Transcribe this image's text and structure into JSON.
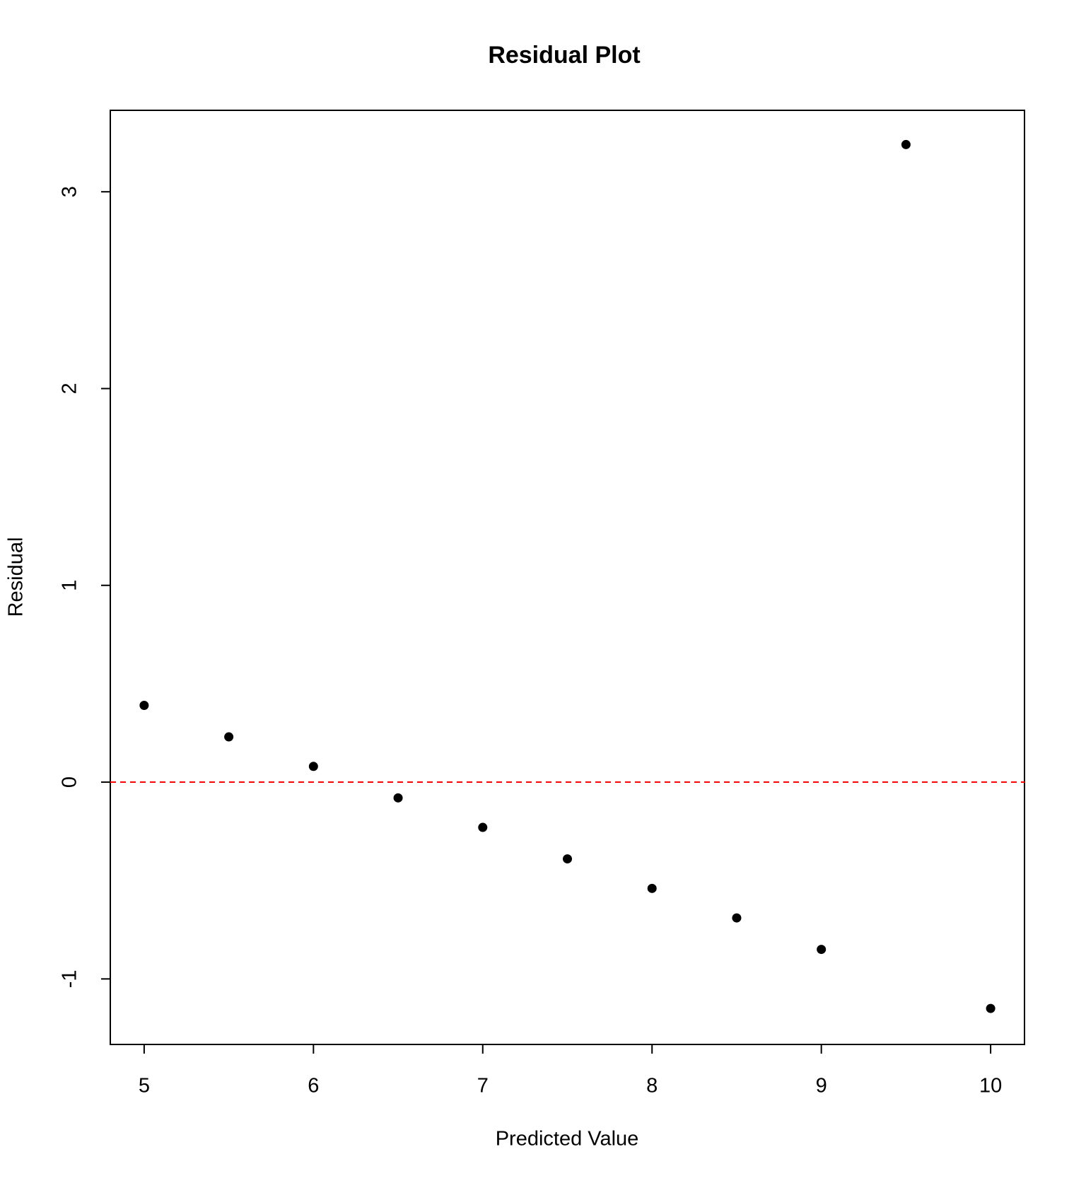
{
  "chart_data": {
    "type": "scatter",
    "title": "Residual Plot",
    "x_label": "Predicted Value",
    "y_label": "Residual",
    "x": [
      5,
      5.5,
      6,
      6.5,
      7,
      7.5,
      8,
      8.5,
      9,
      9.5,
      10
    ],
    "values": [
      0.39,
      0.23,
      0.08,
      -0.08,
      -0.23,
      -0.39,
      -0.54,
      -0.69,
      -0.85,
      3.24,
      -1.15
    ],
    "color": "#000000",
    "xlim": [
      4.8,
      10.2
    ],
    "xticks": [
      5,
      6,
      7,
      8,
      9,
      10
    ],
    "ylim": [
      -1.333,
      3.414
    ],
    "yticks": [
      -1,
      0,
      1,
      2,
      3
    ],
    "reference_line": {
      "value": 0,
      "color": "#ff0000",
      "dashed": true
    },
    "grid": false
  }
}
